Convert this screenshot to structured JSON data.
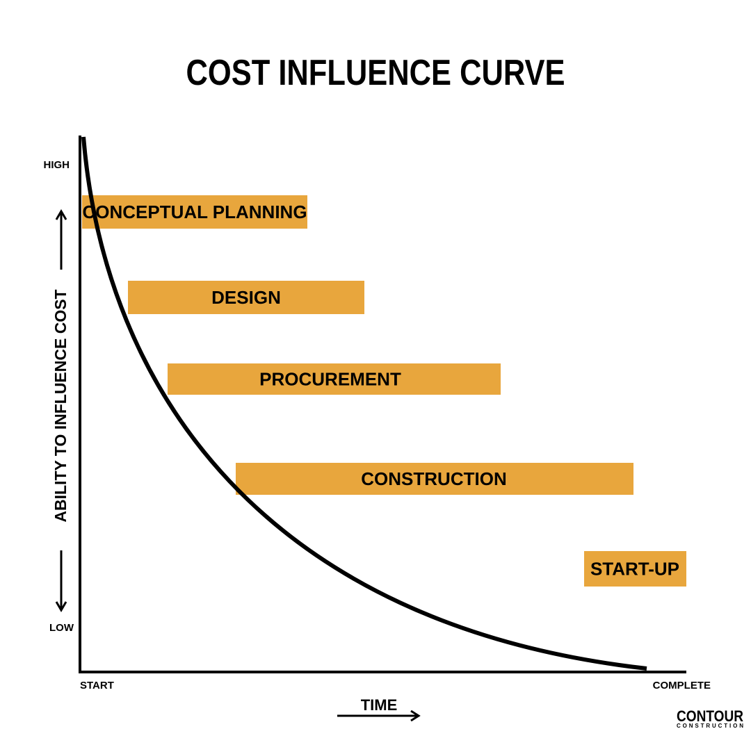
{
  "header": {
    "title": "COST INFLUENCE CURVE"
  },
  "y_axis": {
    "label": "ABILITY TO INFLUENCE COST",
    "high": "HIGH",
    "low": "LOW"
  },
  "x_axis": {
    "label": "TIME",
    "start": "START",
    "end": "COMPLETE"
  },
  "phases": [
    "CONCEPTUAL PLANNING",
    "DESIGN",
    "PROCUREMENT",
    "CONSTRUCTION",
    "START-UP"
  ],
  "logo": {
    "name": "CONTOUR",
    "tagline": "CONSTRUCTION"
  }
}
